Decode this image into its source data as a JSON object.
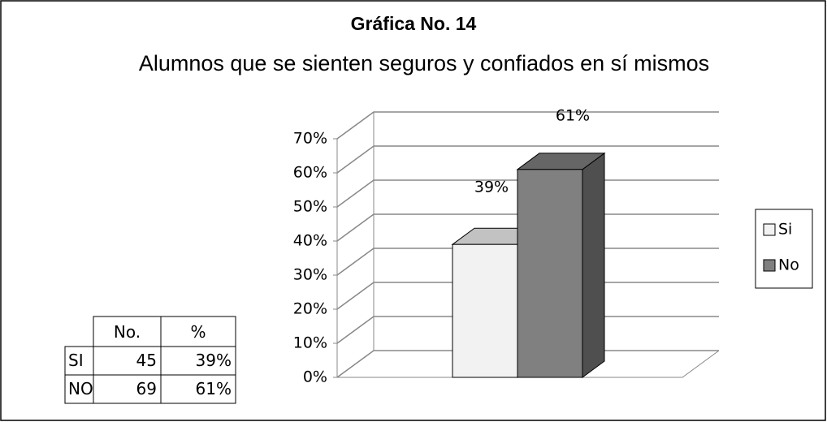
{
  "chart_data": {
    "type": "bar3d",
    "title": "Gráfica No. 14",
    "subtitle": "Alumnos que se sienten seguros y confiados en sí mismos",
    "series": [
      {
        "name": "Si",
        "color": "#f2f2f2",
        "values": [
          39
        ],
        "value_labels": [
          "39%"
        ]
      },
      {
        "name": "No",
        "color": "#808080",
        "values": [
          61
        ],
        "value_labels": [
          "61%"
        ]
      }
    ],
    "ylim": [
      0,
      70
    ],
    "yticks": [
      {
        "value": 0,
        "label": "0%"
      },
      {
        "value": 10,
        "label": "10%"
      },
      {
        "value": 20,
        "label": "20%"
      },
      {
        "value": 30,
        "label": "30%"
      },
      {
        "value": 40,
        "label": "40%"
      },
      {
        "value": 50,
        "label": "50%"
      },
      {
        "value": 60,
        "label": "60%"
      },
      {
        "value": 70,
        "label": "70%"
      }
    ],
    "grid": true,
    "legend": "right"
  },
  "table": {
    "header": [
      "No.",
      "%"
    ],
    "rows": [
      [
        "SI",
        45,
        "39%"
      ],
      [
        "NO",
        69,
        "61%"
      ]
    ]
  }
}
